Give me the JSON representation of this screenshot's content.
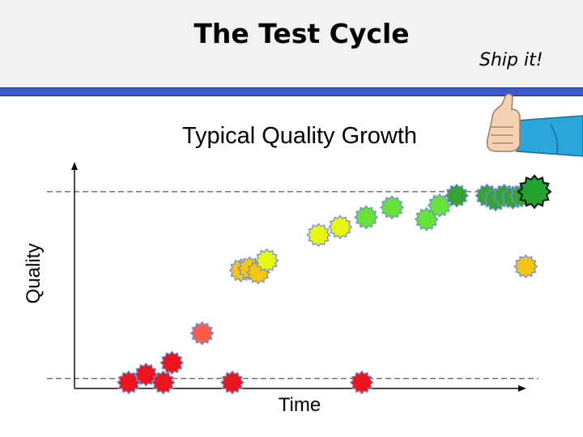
{
  "slide": {
    "title": "The Test Cycle",
    "ship_label": "Ship it!"
  },
  "chart_data": {
    "type": "scatter",
    "title": "Typical Quality Growth",
    "xlabel": "Time",
    "ylabel": "Quality",
    "xlim": [
      0,
      100
    ],
    "ylim": [
      0,
      100
    ],
    "grid": false,
    "reference_lines": [
      {
        "name": "target-quality-line",
        "y": 98
      },
      {
        "name": "baseline-quality-line",
        "y": 3
      }
    ],
    "points": [
      {
        "x": 6,
        "y": 1,
        "color": "#e8161c"
      },
      {
        "x": 10,
        "y": 5,
        "color": "#e8161c"
      },
      {
        "x": 14,
        "y": 1,
        "color": "#e8161c"
      },
      {
        "x": 16,
        "y": 11,
        "color": "#e8161c"
      },
      {
        "x": 23,
        "y": 26,
        "color": "#ff5c4a"
      },
      {
        "x": 30,
        "y": 1,
        "color": "#e8161c"
      },
      {
        "x": 32,
        "y": 58,
        "color": "#f5c511"
      },
      {
        "x": 34,
        "y": 59,
        "color": "#f5c511"
      },
      {
        "x": 36,
        "y": 57,
        "color": "#f5c511"
      },
      {
        "x": 38,
        "y": 63,
        "color": "#e8f511"
      },
      {
        "x": 50,
        "y": 76,
        "color": "#e8f511"
      },
      {
        "x": 55,
        "y": 80,
        "color": "#e8f511"
      },
      {
        "x": 60,
        "y": 1,
        "color": "#e8161c"
      },
      {
        "x": 61,
        "y": 85,
        "color": "#66e23a"
      },
      {
        "x": 67,
        "y": 90,
        "color": "#66e23a"
      },
      {
        "x": 75,
        "y": 84,
        "color": "#66e23a"
      },
      {
        "x": 78,
        "y": 91,
        "color": "#66e23a"
      },
      {
        "x": 82,
        "y": 96,
        "color": "#35a232"
      },
      {
        "x": 89,
        "y": 96,
        "color": "#35a232"
      },
      {
        "x": 91,
        "y": 94,
        "color": "#35a232"
      },
      {
        "x": 93,
        "y": 96,
        "color": "#35a232"
      },
      {
        "x": 95,
        "y": 95,
        "color": "#35a232"
      },
      {
        "x": 97,
        "y": 96,
        "color": "#35a232"
      },
      {
        "x": 98,
        "y": 60,
        "color": "#f5c511"
      },
      {
        "x": 100,
        "y": 98,
        "color": "#23a12e"
      }
    ],
    "highlight_point_index": 24
  }
}
